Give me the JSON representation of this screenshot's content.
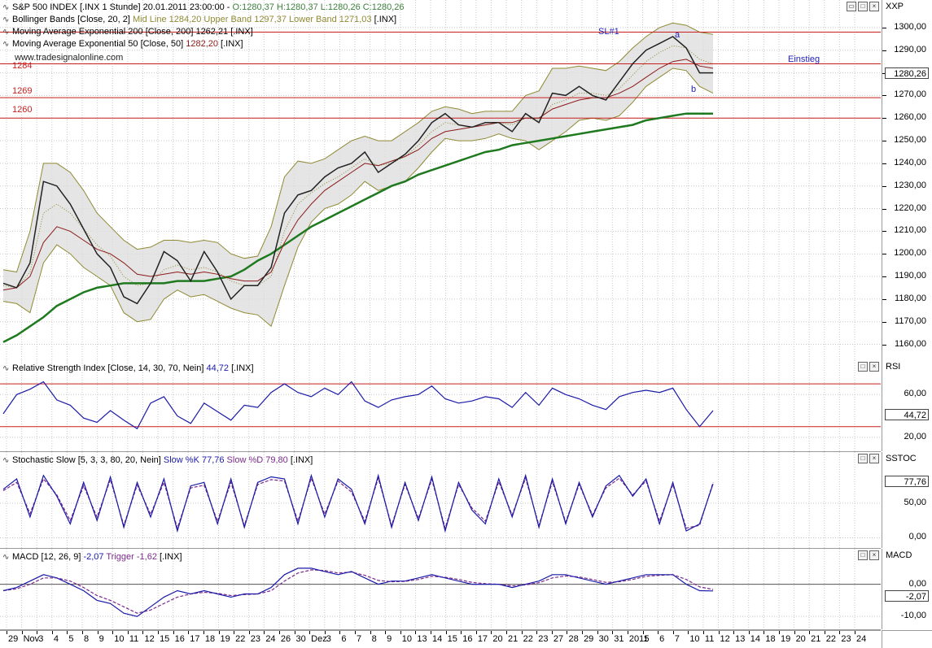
{
  "price_pane": {
    "title_line": "S&P 500 INDEX [.INX  1 Stunde] 20.01.2011 23:00:00 - ",
    "ohlc": "O:1280,37 H:1280,37 L:1280,26 C:1280,26",
    "bb_label": "Bollinger Bands [Close, 20, 2] ",
    "bb_values": "Mid Line 1284,20 Upper Band 1297,37 Lower Band 1271,03 ",
    "bb_symbol": "[.INX]",
    "ema200_label": "Moving Average Exponential 200 [Close, 200] 1262,21 [.INX]",
    "ema50_label": "Moving Average Exponential 50 [Close, 50] ",
    "ema50_value": "1282,20",
    "ema50_symbol": " [.INX]",
    "watermark": "www.tradesignalonline.com",
    "axis_title": "XXP",
    "current_price": "1280,26",
    "annotations": {
      "sl": "SL#1",
      "a": "a",
      "b": "b",
      "einstieg": "Einstieg",
      "l1284": "1284",
      "l1269": "1269",
      "l1260": "1260"
    },
    "ticks": [
      "1300,00",
      "1290,00",
      "1280,00",
      "1270,00",
      "1260,00",
      "1250,00",
      "1240,00",
      "1230,00",
      "1220,00",
      "1210,00",
      "1200,00",
      "1190,00",
      "1180,00",
      "1170,00",
      "1160,00"
    ]
  },
  "rsi_pane": {
    "label": "Relative Strength Index [Close, 14, 30, 70, Nein] ",
    "value": "44,72",
    "symbol": " [.INX]",
    "axis_title": "RSI",
    "current": "44,72",
    "ticks": [
      "60,00",
      "20,00"
    ]
  },
  "stoch_pane": {
    "label": "Stochastic Slow [5, 3, 3, 80, 20, Nein] ",
    "k": "Slow %K 77,76",
    "d": " Slow %D 79,80",
    "symbol": " [.INX]",
    "axis_title": "SSTOC",
    "current": "77,76",
    "ticks": [
      "50,00",
      "0,00"
    ]
  },
  "macd_pane": {
    "label": "MACD [12, 26, 9] ",
    "macd": "-2,07",
    "trigger": " Trigger -1,62",
    "symbol": " [.INX]",
    "axis_title": "MACD",
    "current": "-2,07",
    "ticks": [
      "0,00",
      "-10,00"
    ]
  },
  "x_axis": [
    "29",
    "Nov",
    "3",
    "4",
    "5",
    "8",
    "9",
    "10",
    "11",
    "12",
    "15",
    "16",
    "17",
    "18",
    "19",
    "22",
    "23",
    "24",
    "26",
    "30",
    "Dez",
    "3",
    "6",
    "7",
    "8",
    "9",
    "10",
    "13",
    "14",
    "15",
    "16",
    "17",
    "20",
    "21",
    "22",
    "23",
    "27",
    "28",
    "29",
    "30",
    "31",
    "2011",
    "5",
    "6",
    "7",
    "10",
    "11",
    "12",
    "13",
    "14",
    "18",
    "19",
    "20",
    "21",
    "22",
    "23",
    "24"
  ],
  "colors": {
    "bg": "#ffffff",
    "grid": "#c8c8c8",
    "band_fill": "#dcdcdc",
    "band_line": "#8f8a34",
    "ema200": "#1f7a1f",
    "ema50": "#8b1a1a",
    "price_line": "#222222",
    "rsi": "#1a1aa8",
    "stoch_k": "#1a1aa8",
    "stoch_d": "#7a2a8a",
    "level_red": "#c81e1e",
    "label_blue": "#2222bb",
    "label_green": "#3c7f3c"
  },
  "chart_data": {
    "type": "line",
    "title": "S&P 500 INDEX [.INX  1 Stunde] 20.01.2011 23:00:00",
    "ylim": [
      1153,
      1305
    ],
    "x_range": [
      "29 Nov 2010",
      "24 Jan 2011"
    ],
    "series": [
      {
        "name": "S&P 500 INDEX",
        "values": [
          1187,
          1185,
          1196,
          1232,
          1230,
          1222,
          1211,
          1200,
          1194,
          1181,
          1178,
          1187,
          1201,
          1197,
          1188,
          1201,
          1192,
          1180,
          1186,
          1186,
          1194,
          1218,
          1226,
          1228,
          1234,
          1238,
          1240,
          1245,
          1236,
          1240,
          1244,
          1250,
          1258,
          1262,
          1257,
          1256,
          1258,
          1258,
          1254,
          1262,
          1258,
          1271,
          1270,
          1274,
          1270,
          1268,
          1276,
          1284,
          1290,
          1293,
          1296,
          1291,
          1280,
          1280
        ]
      },
      {
        "name": "Moving Average Exponential 200",
        "values": [
          1161,
          1164,
          1168,
          1172,
          1177,
          1180,
          1183,
          1185,
          1186,
          1187,
          1187,
          1187,
          1187,
          1188,
          1188,
          1188,
          1189,
          1190,
          1193,
          1197,
          1200,
          1204,
          1208,
          1212,
          1215,
          1218,
          1221,
          1224,
          1227,
          1230,
          1232,
          1235,
          1237,
          1239,
          1241,
          1243,
          1245,
          1246,
          1248,
          1249,
          1250,
          1251,
          1252,
          1253,
          1254,
          1255,
          1256,
          1257,
          1259,
          1260,
          1261,
          1262,
          1262,
          1262
        ]
      },
      {
        "name": "Moving Average Exponential 50",
        "values": [
          1184,
          1185,
          1190,
          1205,
          1212,
          1210,
          1206,
          1202,
          1200,
          1196,
          1191,
          1190,
          1191,
          1192,
          1191,
          1192,
          1191,
          1189,
          1188,
          1188,
          1192,
          1205,
          1215,
          1222,
          1228,
          1232,
          1236,
          1240,
          1239,
          1241,
          1243,
          1246,
          1251,
          1254,
          1255,
          1256,
          1257,
          1258,
          1258,
          1260,
          1260,
          1264,
          1266,
          1268,
          1269,
          1269,
          1271,
          1274,
          1278,
          1282,
          1285,
          1286,
          1283,
          1282
        ]
      },
      {
        "name": "Bollinger Mid Line",
        "values": [
          1186,
          1185,
          1192,
          1218,
          1222,
          1218,
          1211,
          1204,
          1199,
          1190,
          1186,
          1187,
          1193,
          1195,
          1193,
          1194,
          1192,
          1188,
          1186,
          1186,
          1190,
          1210,
          1222,
          1227,
          1231,
          1234,
          1238,
          1242,
          1239,
          1240,
          1243,
          1248,
          1254,
          1258,
          1257,
          1256,
          1257,
          1258,
          1257,
          1260,
          1259,
          1266,
          1268,
          1271,
          1271,
          1270,
          1273,
          1279,
          1285,
          1289,
          1292,
          1291,
          1286,
          1284
        ]
      },
      {
        "name": "Upper Band",
        "values": [
          1193,
          1192,
          1210,
          1240,
          1240,
          1236,
          1228,
          1218,
          1212,
          1206,
          1202,
          1203,
          1206,
          1206,
          1205,
          1206,
          1205,
          1200,
          1198,
          1199,
          1212,
          1234,
          1241,
          1240,
          1242,
          1246,
          1250,
          1252,
          1250,
          1250,
          1254,
          1258,
          1263,
          1265,
          1264,
          1262,
          1263,
          1263,
          1263,
          1270,
          1272,
          1282,
          1282,
          1283,
          1282,
          1281,
          1285,
          1291,
          1296,
          1300,
          1302,
          1301,
          1298,
          1297
        ]
      },
      {
        "name": "Lower Band",
        "values": [
          1179,
          1178,
          1174,
          1196,
          1204,
          1200,
          1194,
          1190,
          1186,
          1174,
          1170,
          1171,
          1180,
          1184,
          1181,
          1182,
          1179,
          1176,
          1174,
          1173,
          1168,
          1186,
          1203,
          1214,
          1220,
          1222,
          1226,
          1232,
          1228,
          1230,
          1232,
          1238,
          1245,
          1251,
          1250,
          1250,
          1251,
          1253,
          1251,
          1250,
          1246,
          1250,
          1254,
          1259,
          1260,
          1259,
          1261,
          1267,
          1274,
          1278,
          1282,
          1281,
          1274,
          1271
        ]
      },
      {
        "name": "Relative Strength Index",
        "values": [
          42,
          60,
          65,
          72,
          55,
          50,
          38,
          34,
          45,
          36,
          28,
          52,
          58,
          40,
          33,
          52,
          44,
          36,
          50,
          48,
          62,
          70,
          62,
          58,
          66,
          60,
          72,
          54,
          48,
          55,
          58,
          60,
          68,
          56,
          52,
          54,
          58,
          56,
          48,
          62,
          50,
          66,
          60,
          56,
          50,
          46,
          58,
          62,
          64,
          62,
          66,
          46,
          30,
          45
        ]
      },
      {
        "name": "Slow %K",
        "values": [
          70,
          85,
          30,
          90,
          60,
          20,
          80,
          25,
          88,
          15,
          80,
          30,
          85,
          10,
          75,
          80,
          20,
          85,
          15,
          80,
          88,
          85,
          20,
          90,
          30,
          85,
          70,
          20,
          90,
          15,
          80,
          25,
          88,
          10,
          80,
          40,
          20,
          85,
          30,
          90,
          15,
          85,
          20,
          80,
          30,
          75,
          90,
          60,
          85,
          20,
          80,
          10,
          20,
          77.76
        ]
      },
      {
        "name": "Slow %D",
        "values": [
          68,
          80,
          35,
          85,
          62,
          25,
          75,
          30,
          84,
          18,
          76,
          34,
          80,
          14,
          72,
          76,
          24,
          80,
          18,
          77,
          84,
          82,
          24,
          86,
          34,
          82,
          66,
          24,
          86,
          18,
          77,
          28,
          84,
          14,
          77,
          43,
          24,
          81,
          33,
          86,
          18,
          81,
          23,
          77,
          33,
          72,
          86,
          62,
          82,
          24,
          77,
          14,
          18,
          79.8
        ]
      },
      {
        "name": "MACD",
        "values": [
          -2,
          -1,
          1,
          3,
          2,
          0,
          -2,
          -5,
          -6,
          -9,
          -10,
          -7,
          -4,
          -2,
          -3,
          -2,
          -3,
          -4,
          -3,
          -3,
          -1,
          3,
          5,
          5,
          4,
          3,
          4,
          2,
          0,
          1,
          1,
          2,
          3,
          2,
          1,
          0,
          0,
          0,
          -1,
          0,
          1,
          3,
          3,
          2,
          1,
          0,
          1,
          2,
          3,
          3,
          3,
          0,
          -2,
          -2.07
        ]
      },
      {
        "name": "Trigger",
        "values": [
          -2,
          -1.4,
          0,
          2,
          2,
          1,
          -1,
          -3.5,
          -5,
          -7,
          -9,
          -8,
          -6,
          -4,
          -3,
          -2.5,
          -2.8,
          -3.5,
          -3.2,
          -3,
          -2,
          1,
          3.5,
          4.5,
          4.3,
          3.5,
          3.8,
          2.8,
          1.2,
          0.8,
          0.9,
          1.5,
          2.5,
          2.2,
          1.5,
          0.6,
          0.2,
          0,
          -0.5,
          -0.2,
          0.5,
          2,
          2.6,
          2.3,
          1.5,
          0.6,
          0.8,
          1.5,
          2.5,
          2.8,
          3,
          1.5,
          -0.8,
          -1.62
        ]
      }
    ],
    "levels": [
      1298,
      1284,
      1269,
      1260
    ],
    "rsi_ylim": [
      10,
      80
    ],
    "stoch_ylim": [
      -10,
      105
    ],
    "macd_ylim": [
      -13,
      7
    ],
    "grid": true,
    "legend": "top-left"
  }
}
